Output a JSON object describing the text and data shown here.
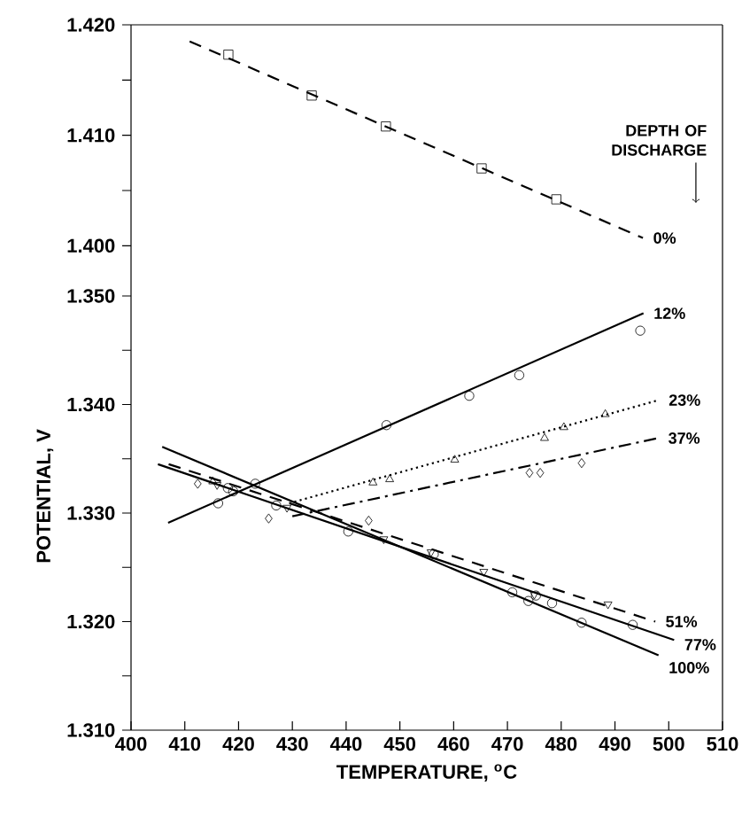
{
  "chart_data": [
    {
      "type": "line",
      "legend_title": "DEPTH OF DISCHARGE",
      "xlim": [
        400,
        510
      ],
      "ylim": [
        1.3985,
        1.42
      ],
      "yticks": [
        {
          "value": 1.4,
          "label": "1.400"
        },
        {
          "value": 1.405,
          "label": null
        },
        {
          "value": 1.41,
          "label": "1.410"
        },
        {
          "value": 1.415,
          "label": null
        },
        {
          "value": 1.42,
          "label": "1.420"
        }
      ],
      "tick_labels": "y",
      "series": [
        {
          "type": "scatter",
          "marker": "square",
          "color": "#000000",
          "x": [
            418.1,
            433.6,
            447.4,
            465.2,
            479.1
          ],
          "values": [
            1.4173,
            1.4136,
            1.4108,
            1.407,
            1.4042
          ]
        },
        {
          "name": "0%",
          "line_style": "dashed",
          "color": "#000000",
          "x": [
            410.9,
            495.2
          ],
          "values": [
            1.4185,
            1.4007
          ]
        }
      ]
    },
    {
      "type": "line",
      "xlabel": "TEMPERATURE, $^{o}$C",
      "ylabel": "POTENTIAL, V",
      "xlim": [
        400,
        510
      ],
      "xticks": [
        400,
        410,
        420,
        430,
        440,
        450,
        460,
        470,
        480,
        490,
        500,
        510
      ],
      "ylim": [
        1.31,
        1.3531
      ],
      "yticks": [
        {
          "value": 1.31,
          "label": "1.310"
        },
        {
          "value": 1.315,
          "label": null
        },
        {
          "value": 1.32,
          "label": "1.320"
        },
        {
          "value": 1.325,
          "label": null
        },
        {
          "value": 1.33,
          "label": "1.330"
        },
        {
          "value": 1.335,
          "label": null
        },
        {
          "value": 1.34,
          "label": "1.340"
        },
        {
          "value": 1.345,
          "label": null
        },
        {
          "value": 1.35,
          "label": "1.350"
        }
      ],
      "series": [
        {
          "type": "scatter",
          "marker": "circle",
          "color": "#000000",
          "x": [
            416.2,
            423.1,
            447.5,
            462.9,
            472.2,
            494.7
          ],
          "values": [
            1.3309,
            1.3327,
            1.3381,
            1.3408,
            1.3427,
            1.3468
          ]
        },
        {
          "name": "12%",
          "line_style": "solid",
          "color": "#000000",
          "x": [
            406.9,
            495.3
          ],
          "values": [
            1.3291,
            1.3484
          ]
        },
        {
          "type": "scatter",
          "marker": "triangle",
          "color": "#000000",
          "x": [
            415.2,
            445.0,
            448.1,
            460.2,
            476.9,
            480.5,
            488.2
          ],
          "values": [
            1.3329,
            1.3328,
            1.3331,
            1.3349,
            1.3369,
            1.3379,
            1.3391
          ]
        },
        {
          "name": "23%",
          "line_style": "dotted",
          "color": "#000000",
          "x": [
            429.4,
            498.1
          ],
          "values": [
            1.3309,
            1.3404
          ]
        },
        {
          "type": "scatter",
          "marker": "diamond",
          "color": "#000000",
          "x": [
            412.4,
            425.6,
            444.2,
            474.1,
            476.1,
            483.8
          ],
          "values": [
            1.3327,
            1.3295,
            1.3293,
            1.3337,
            1.3337,
            1.3346
          ]
        },
        {
          "name": "37%",
          "line_style": "dashdotted",
          "color": "#000000",
          "x": [
            430.0,
            498.0
          ],
          "values": [
            1.3297,
            1.3369
          ]
        },
        {
          "type": "scatter",
          "marker": "triangle down",
          "color": "#000000",
          "x": [
            416.0,
            429.0,
            447.0,
            455.8,
            465.6,
            475.0,
            488.7
          ],
          "values": [
            1.3326,
            1.3305,
            1.3276,
            1.3264,
            1.3246,
            1.3225,
            1.3216
          ]
        },
        {
          "name": "51%",
          "line_style": "dashed",
          "color": "#000000",
          "x": [
            407.0,
            497.5
          ],
          "values": [
            1.3345,
            1.32
          ]
        },
        {
          "type": "scatter",
          "marker": "circle",
          "color": "#000000",
          "x": [
            419.0,
            440.4,
            475.3,
            478.3,
            493.3
          ],
          "values": [
            1.332,
            1.3283,
            1.3224,
            1.3217,
            1.3197
          ]
        },
        {
          "name": "77%",
          "line_style": "solid",
          "color": "#000000",
          "x": [
            405.0,
            501.0
          ],
          "values": [
            1.3345,
            1.3183
          ]
        },
        {
          "type": "scatter",
          "marker": "circle",
          "color": "#000000",
          "x": [
            418.0,
            427.0,
            456.3,
            470.9,
            473.9,
            483.8
          ],
          "values": [
            1.3323,
            1.3307,
            1.3262,
            1.3227,
            1.3219,
            1.3199
          ]
        },
        {
          "name": "100%",
          "line_style": "solid",
          "color": "#000000",
          "x": [
            405.8,
            498.1
          ],
          "values": [
            1.3361,
            1.3169
          ]
        }
      ]
    }
  ]
}
